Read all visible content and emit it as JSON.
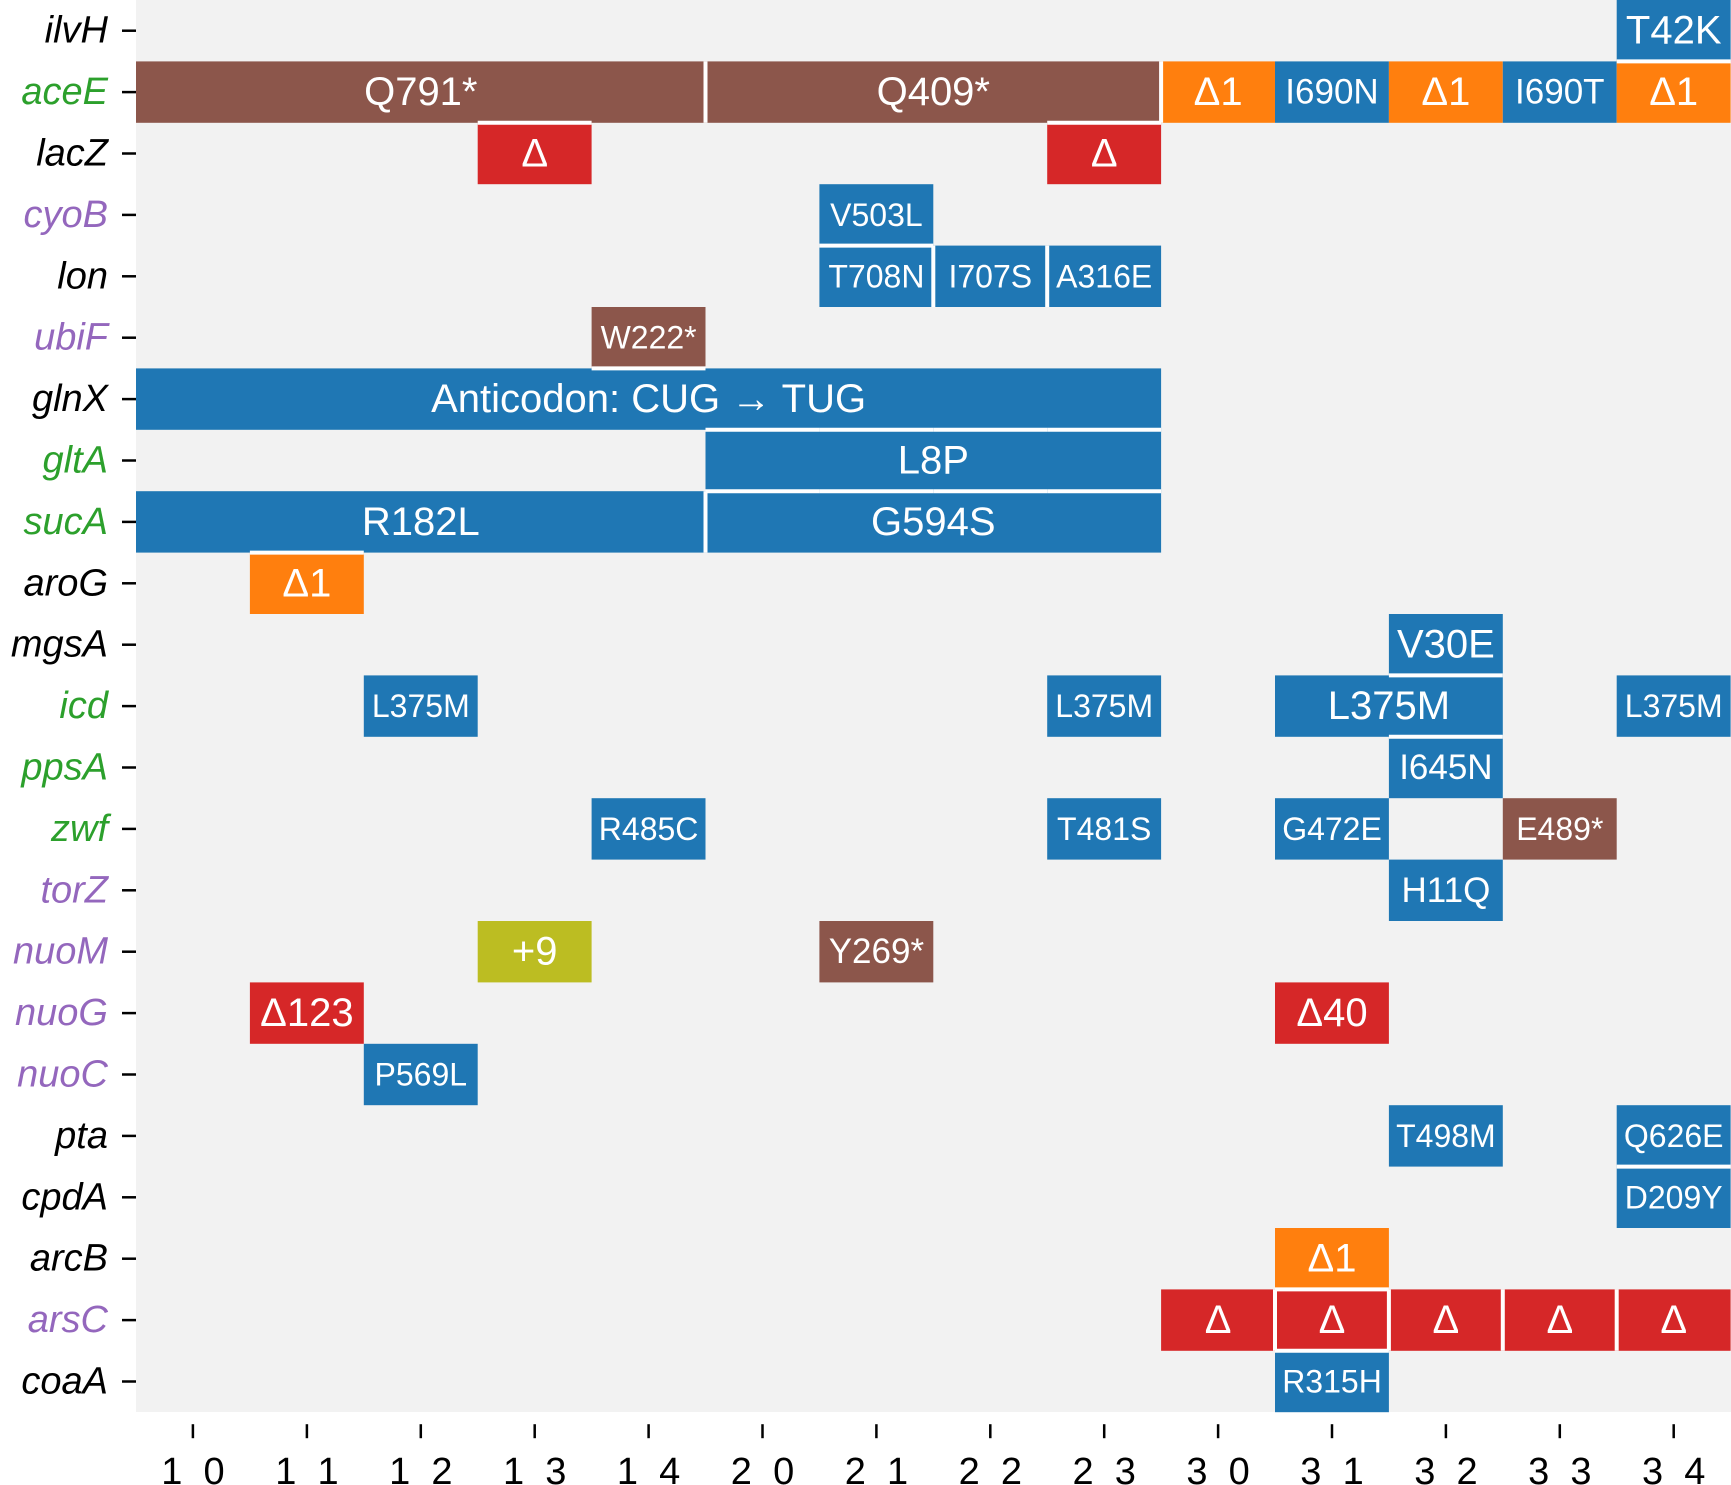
{
  "colors": {
    "background": "#f2f2f2",
    "snp": "#1f77b4",
    "deletion": "#d62728",
    "frameshift": "#ff7f0e",
    "stop": "#8c564b",
    "insertion": "#bcbd22",
    "gene_black": "#000000",
    "gene_green": "#2ca02c",
    "gene_purple": "#9467bd"
  },
  "chart_data": {
    "type": "heatmap",
    "title": "",
    "xlabel": "",
    "ylabel": "",
    "x_categories": [
      "1_0",
      "1_1",
      "1_2",
      "1_3",
      "1_4",
      "2_0",
      "2_1",
      "2_2",
      "2_3",
      "3_0",
      "3_1",
      "3_2",
      "3_3",
      "3_4"
    ],
    "genes": [
      {
        "name": "ilvH",
        "color": "black"
      },
      {
        "name": "aceE",
        "color": "green"
      },
      {
        "name": "lacZ",
        "color": "black"
      },
      {
        "name": "cyoB",
        "color": "purple"
      },
      {
        "name": "lon",
        "color": "black"
      },
      {
        "name": "ubiF",
        "color": "purple"
      },
      {
        "name": "glnX",
        "color": "black"
      },
      {
        "name": "gltA",
        "color": "green"
      },
      {
        "name": "sucA",
        "color": "green"
      },
      {
        "name": "aroG",
        "color": "black"
      },
      {
        "name": "mgsA",
        "color": "black"
      },
      {
        "name": "icd",
        "color": "green"
      },
      {
        "name": "ppsA",
        "color": "green"
      },
      {
        "name": "zwf",
        "color": "green"
      },
      {
        "name": "torZ",
        "color": "purple"
      },
      {
        "name": "nuoM",
        "color": "purple"
      },
      {
        "name": "nuoG",
        "color": "purple"
      },
      {
        "name": "nuoC",
        "color": "purple"
      },
      {
        "name": "pta",
        "color": "black"
      },
      {
        "name": "cpdA",
        "color": "black"
      },
      {
        "name": "arcB",
        "color": "black"
      },
      {
        "name": "arsC",
        "color": "purple"
      },
      {
        "name": "coaA",
        "color": "black"
      }
    ],
    "mutations": [
      {
        "gene": "ilvH",
        "start": 13,
        "end": 13,
        "label": "T42K",
        "kind": "snp",
        "size": "large"
      },
      {
        "gene": "aceE",
        "start": 0,
        "end": 4,
        "label": "Q791*",
        "kind": "stop",
        "size": "large"
      },
      {
        "gene": "aceE",
        "start": 5,
        "end": 8,
        "label": "Q409*",
        "kind": "stop",
        "size": "large"
      },
      {
        "gene": "aceE",
        "start": 9,
        "end": 9,
        "label": "Δ1",
        "kind": "frameshift",
        "size": "large"
      },
      {
        "gene": "aceE",
        "start": 10,
        "end": 10,
        "label": "I690N",
        "kind": "snp",
        "size": "medium"
      },
      {
        "gene": "aceE",
        "start": 11,
        "end": 11,
        "label": "Δ1",
        "kind": "frameshift",
        "size": "large"
      },
      {
        "gene": "aceE",
        "start": 12,
        "end": 12,
        "label": "I690T",
        "kind": "snp",
        "size": "medium"
      },
      {
        "gene": "aceE",
        "start": 13,
        "end": 13,
        "label": "Δ1",
        "kind": "frameshift",
        "size": "large"
      },
      {
        "gene": "lacZ",
        "start": 3,
        "end": 3,
        "label": "Δ",
        "kind": "deletion",
        "size": "large"
      },
      {
        "gene": "lacZ",
        "start": 8,
        "end": 8,
        "label": "Δ",
        "kind": "deletion",
        "size": "large"
      },
      {
        "gene": "cyoB",
        "start": 6,
        "end": 6,
        "label": "V503L",
        "kind": "snp",
        "size": "small"
      },
      {
        "gene": "lon",
        "start": 6,
        "end": 6,
        "label": "T708N",
        "kind": "snp",
        "size": "small"
      },
      {
        "gene": "lon",
        "start": 7,
        "end": 7,
        "label": "I707S",
        "kind": "snp",
        "size": "small"
      },
      {
        "gene": "lon",
        "start": 8,
        "end": 8,
        "label": "A316E",
        "kind": "snp",
        "size": "small"
      },
      {
        "gene": "ubiF",
        "start": 4,
        "end": 4,
        "label": "W222*",
        "kind": "stop",
        "size": "small"
      },
      {
        "gene": "glnX",
        "start": 0,
        "end": 8,
        "label": "Anticodon: CUG → TUG",
        "kind": "snp",
        "size": "large"
      },
      {
        "gene": "gltA",
        "start": 5,
        "end": 8,
        "label": "L8P",
        "kind": "snp",
        "size": "large"
      },
      {
        "gene": "sucA",
        "start": 0,
        "end": 4,
        "label": "R182L",
        "kind": "snp",
        "size": "large"
      },
      {
        "gene": "sucA",
        "start": 5,
        "end": 8,
        "label": "G594S",
        "kind": "snp",
        "size": "large"
      },
      {
        "gene": "aroG",
        "start": 1,
        "end": 1,
        "label": "Δ1",
        "kind": "frameshift",
        "size": "large"
      },
      {
        "gene": "mgsA",
        "start": 11,
        "end": 11,
        "label": "V30E",
        "kind": "snp",
        "size": "large"
      },
      {
        "gene": "icd",
        "start": 2,
        "end": 2,
        "label": "L375M",
        "kind": "snp",
        "size": "small"
      },
      {
        "gene": "icd",
        "start": 8,
        "end": 8,
        "label": "L375M",
        "kind": "snp",
        "size": "small"
      },
      {
        "gene": "icd",
        "start": 10,
        "end": 11,
        "label": "L375M",
        "kind": "snp",
        "size": "large"
      },
      {
        "gene": "icd",
        "start": 13,
        "end": 13,
        "label": "L375M",
        "kind": "snp",
        "size": "small"
      },
      {
        "gene": "ppsA",
        "start": 11,
        "end": 11,
        "label": "I645N",
        "kind": "snp",
        "size": "medium"
      },
      {
        "gene": "zwf",
        "start": 4,
        "end": 4,
        "label": "R485C",
        "kind": "snp",
        "size": "small"
      },
      {
        "gene": "zwf",
        "start": 8,
        "end": 8,
        "label": "T481S",
        "kind": "snp",
        "size": "small"
      },
      {
        "gene": "zwf",
        "start": 10,
        "end": 10,
        "label": "G472E",
        "kind": "snp",
        "size": "small"
      },
      {
        "gene": "zwf",
        "start": 12,
        "end": 12,
        "label": "E489*",
        "kind": "stop",
        "size": "small"
      },
      {
        "gene": "torZ",
        "start": 11,
        "end": 11,
        "label": "H11Q",
        "kind": "snp",
        "size": "medium"
      },
      {
        "gene": "nuoM",
        "start": 3,
        "end": 3,
        "label": "+9",
        "kind": "insertion",
        "size": "large"
      },
      {
        "gene": "nuoM",
        "start": 6,
        "end": 6,
        "label": "Y269*",
        "kind": "stop",
        "size": "medium"
      },
      {
        "gene": "nuoG",
        "start": 1,
        "end": 1,
        "label": "Δ123",
        "kind": "deletion",
        "size": "large"
      },
      {
        "gene": "nuoG",
        "start": 10,
        "end": 10,
        "label": "Δ40",
        "kind": "deletion",
        "size": "large"
      },
      {
        "gene": "nuoC",
        "start": 2,
        "end": 2,
        "label": "P569L",
        "kind": "snp",
        "size": "small"
      },
      {
        "gene": "pta",
        "start": 11,
        "end": 11,
        "label": "T498M",
        "kind": "snp",
        "size": "small"
      },
      {
        "gene": "pta",
        "start": 13,
        "end": 13,
        "label": "Q626E",
        "kind": "snp",
        "size": "small"
      },
      {
        "gene": "cpdA",
        "start": 13,
        "end": 13,
        "label": "D209Y",
        "kind": "snp",
        "size": "small"
      },
      {
        "gene": "arcB",
        "start": 10,
        "end": 10,
        "label": "Δ1",
        "kind": "frameshift",
        "size": "large"
      },
      {
        "gene": "arsC",
        "start": 9,
        "end": 9,
        "label": "Δ",
        "kind": "deletion",
        "size": "large"
      },
      {
        "gene": "arsC",
        "start": 10,
        "end": 10,
        "label": "Δ",
        "kind": "deletion",
        "size": "large"
      },
      {
        "gene": "arsC",
        "start": 11,
        "end": 11,
        "label": "Δ",
        "kind": "deletion",
        "size": "large"
      },
      {
        "gene": "arsC",
        "start": 12,
        "end": 12,
        "label": "Δ",
        "kind": "deletion",
        "size": "large"
      },
      {
        "gene": "arsC",
        "start": 13,
        "end": 13,
        "label": "Δ",
        "kind": "deletion",
        "size": "large"
      },
      {
        "gene": "coaA",
        "start": 10,
        "end": 10,
        "label": "R315H",
        "kind": "snp",
        "size": "small"
      }
    ],
    "grid": false,
    "legend": "none"
  }
}
